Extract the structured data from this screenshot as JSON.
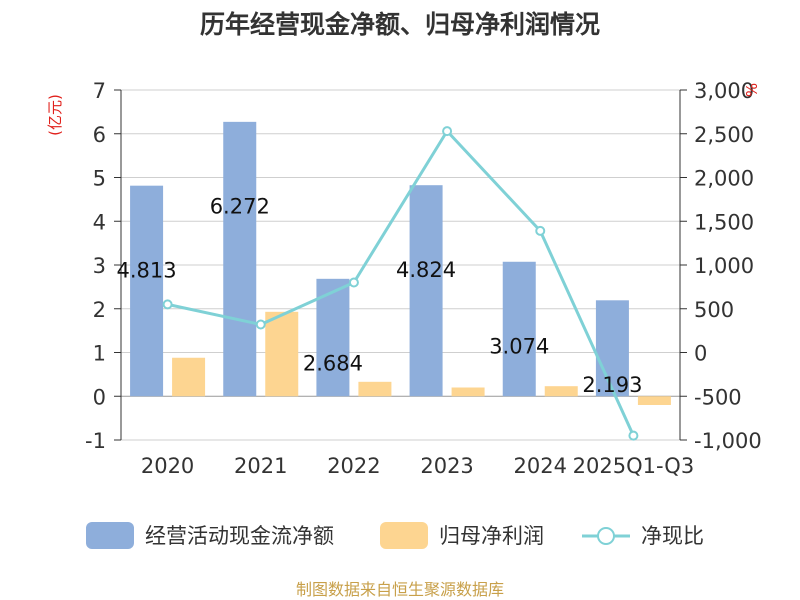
{
  "chart_data": {
    "type": "bar+line",
    "title": "历年经营现金净额、归母净利润情况",
    "categories": [
      "2020",
      "2021",
      "2022",
      "2023",
      "2024",
      "2025Q1-Q3"
    ],
    "series": [
      {
        "name": "经营活动现金流净额",
        "type": "bar",
        "axis": "left",
        "color": "#8eaedb",
        "values": [
          4.813,
          6.272,
          2.684,
          4.824,
          3.074,
          2.193
        ]
      },
      {
        "name": "归母净利润",
        "type": "bar",
        "axis": "left",
        "color": "#fdd591",
        "values": [
          0.88,
          1.93,
          0.33,
          0.2,
          0.23,
          -0.2
        ]
      },
      {
        "name": "净现比",
        "type": "line",
        "axis": "right",
        "color": "#7fd1d6",
        "values": [
          550,
          320,
          800,
          2530,
          1390,
          -950
        ]
      }
    ],
    "left_axis": {
      "label": "(亿元)",
      "ylim": [
        -1,
        7
      ],
      "ticks": [
        "-1",
        "0",
        "1",
        "2",
        "3",
        "4",
        "5",
        "6",
        "7"
      ]
    },
    "right_axis": {
      "label": "%",
      "ylim": [
        -1000,
        3000
      ],
      "ticks": [
        "-1,000",
        "-500",
        "0",
        "500",
        "1,000",
        "1,500",
        "2,000",
        "2,500",
        "3,000"
      ]
    },
    "data_labels": [
      "4.813",
      "6.272",
      "2.684",
      "4.824",
      "3.074",
      "2.193"
    ],
    "legend": [
      "经营活动现金流净额",
      "归母净利润",
      "净现比"
    ],
    "legend_position": "bottom",
    "grid": true
  },
  "footer": {
    "source": "制图数据来自恒生聚源数据库"
  }
}
